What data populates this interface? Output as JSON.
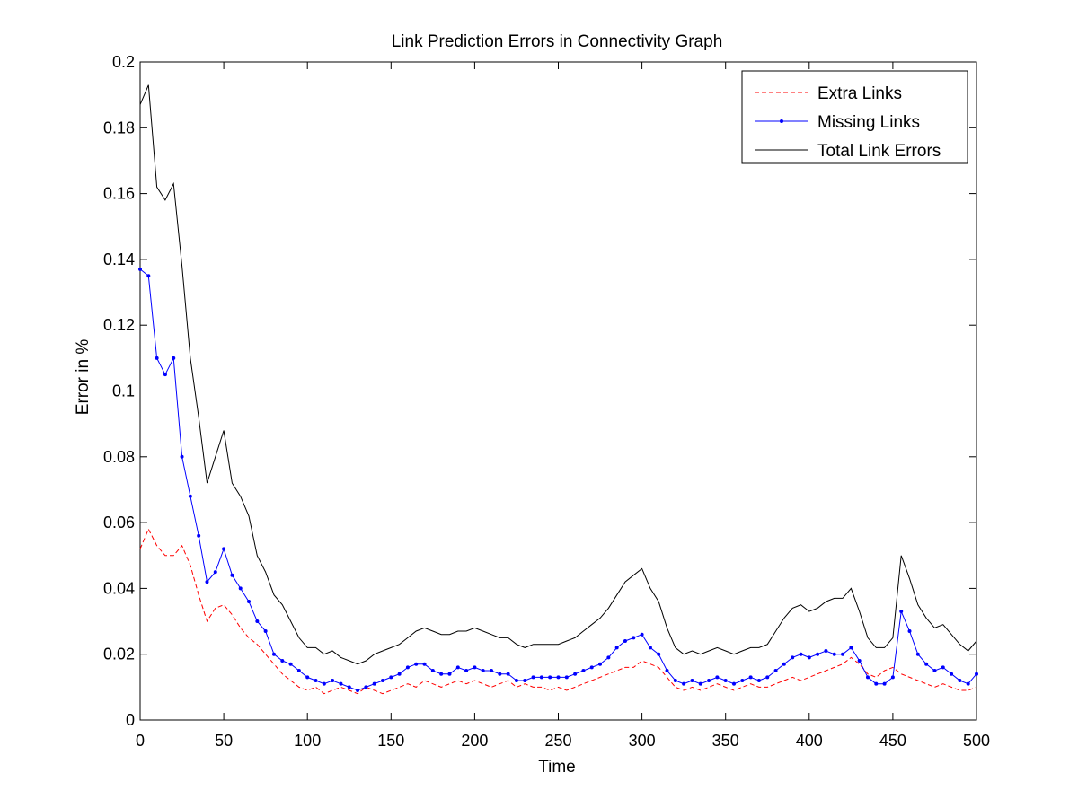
{
  "chart_data": {
    "type": "line",
    "title": "Link Prediction Errors in Connectivity Graph",
    "xlabel": "Time",
    "ylabel": "Error in %",
    "xlim": [
      0,
      500
    ],
    "ylim": [
      0,
      0.2
    ],
    "xticks": [
      0,
      50,
      100,
      150,
      200,
      250,
      300,
      350,
      400,
      450,
      500
    ],
    "yticks": [
      0,
      0.02,
      0.04,
      0.06,
      0.08,
      0.1,
      0.12,
      0.14,
      0.16,
      0.18,
      0.2
    ],
    "ytick_labels": [
      "0",
      "0.02",
      "0.04",
      "0.06",
      "0.08",
      "0.1",
      "0.12",
      "0.14",
      "0.16",
      "0.18",
      "0.2"
    ],
    "grid": false,
    "legend_position": "top-right",
    "series": [
      {
        "name": "Extra Links",
        "color": "#ff0000",
        "style": "dashed",
        "marker": "none",
        "x": [
          0,
          5,
          10,
          15,
          20,
          25,
          30,
          35,
          40,
          45,
          50,
          55,
          60,
          65,
          70,
          75,
          80,
          85,
          90,
          95,
          100,
          105,
          110,
          115,
          120,
          125,
          130,
          135,
          140,
          145,
          150,
          155,
          160,
          165,
          170,
          175,
          180,
          185,
          190,
          195,
          200,
          205,
          210,
          215,
          220,
          225,
          230,
          235,
          240,
          245,
          250,
          255,
          260,
          265,
          270,
          275,
          280,
          285,
          290,
          295,
          300,
          305,
          310,
          315,
          320,
          325,
          330,
          335,
          340,
          345,
          350,
          355,
          360,
          365,
          370,
          375,
          380,
          385,
          390,
          395,
          400,
          405,
          410,
          415,
          420,
          425,
          430,
          435,
          440,
          445,
          450,
          455,
          460,
          465,
          470,
          475,
          480,
          485,
          490,
          495,
          500
        ],
        "y": [
          0.052,
          0.058,
          0.053,
          0.05,
          0.05,
          0.053,
          0.047,
          0.038,
          0.03,
          0.034,
          0.035,
          0.032,
          0.028,
          0.025,
          0.023,
          0.02,
          0.017,
          0.014,
          0.012,
          0.01,
          0.009,
          0.01,
          0.008,
          0.009,
          0.01,
          0.009,
          0.008,
          0.01,
          0.009,
          0.008,
          0.009,
          0.01,
          0.011,
          0.01,
          0.012,
          0.011,
          0.01,
          0.011,
          0.012,
          0.011,
          0.012,
          0.011,
          0.01,
          0.011,
          0.012,
          0.01,
          0.011,
          0.01,
          0.01,
          0.009,
          0.01,
          0.009,
          0.01,
          0.011,
          0.012,
          0.013,
          0.014,
          0.015,
          0.016,
          0.016,
          0.018,
          0.017,
          0.016,
          0.013,
          0.01,
          0.009,
          0.01,
          0.009,
          0.01,
          0.011,
          0.01,
          0.009,
          0.01,
          0.011,
          0.01,
          0.01,
          0.011,
          0.012,
          0.013,
          0.012,
          0.013,
          0.014,
          0.015,
          0.016,
          0.017,
          0.019,
          0.017,
          0.014,
          0.013,
          0.015,
          0.016,
          0.014,
          0.013,
          0.012,
          0.011,
          0.01,
          0.011,
          0.01,
          0.009,
          0.009,
          0.01
        ]
      },
      {
        "name": "Missing Links",
        "color": "#0000ff",
        "style": "solid",
        "marker": "point",
        "x": [
          0,
          5,
          10,
          15,
          20,
          25,
          30,
          35,
          40,
          45,
          50,
          55,
          60,
          65,
          70,
          75,
          80,
          85,
          90,
          95,
          100,
          105,
          110,
          115,
          120,
          125,
          130,
          135,
          140,
          145,
          150,
          155,
          160,
          165,
          170,
          175,
          180,
          185,
          190,
          195,
          200,
          205,
          210,
          215,
          220,
          225,
          230,
          235,
          240,
          245,
          250,
          255,
          260,
          265,
          270,
          275,
          280,
          285,
          290,
          295,
          300,
          305,
          310,
          315,
          320,
          325,
          330,
          335,
          340,
          345,
          350,
          355,
          360,
          365,
          370,
          375,
          380,
          385,
          390,
          395,
          400,
          405,
          410,
          415,
          420,
          425,
          430,
          435,
          440,
          445,
          450,
          455,
          460,
          465,
          470,
          475,
          480,
          485,
          490,
          495,
          500
        ],
        "y": [
          0.137,
          0.135,
          0.11,
          0.105,
          0.11,
          0.08,
          0.068,
          0.056,
          0.042,
          0.045,
          0.052,
          0.044,
          0.04,
          0.036,
          0.03,
          0.027,
          0.02,
          0.018,
          0.017,
          0.015,
          0.013,
          0.012,
          0.011,
          0.012,
          0.011,
          0.01,
          0.009,
          0.01,
          0.011,
          0.012,
          0.013,
          0.014,
          0.016,
          0.017,
          0.017,
          0.015,
          0.014,
          0.014,
          0.016,
          0.015,
          0.016,
          0.015,
          0.015,
          0.014,
          0.014,
          0.012,
          0.012,
          0.013,
          0.013,
          0.013,
          0.013,
          0.013,
          0.014,
          0.015,
          0.016,
          0.017,
          0.019,
          0.022,
          0.024,
          0.025,
          0.026,
          0.022,
          0.02,
          0.015,
          0.012,
          0.011,
          0.012,
          0.011,
          0.012,
          0.013,
          0.012,
          0.011,
          0.012,
          0.013,
          0.012,
          0.013,
          0.015,
          0.017,
          0.019,
          0.02,
          0.019,
          0.02,
          0.021,
          0.02,
          0.02,
          0.022,
          0.018,
          0.013,
          0.011,
          0.011,
          0.013,
          0.033,
          0.027,
          0.02,
          0.017,
          0.015,
          0.016,
          0.014,
          0.012,
          0.011,
          0.014
        ]
      },
      {
        "name": "Total Link Errors",
        "color": "#000000",
        "style": "solid",
        "marker": "none",
        "x": [
          0,
          5,
          10,
          15,
          20,
          25,
          30,
          35,
          40,
          45,
          50,
          55,
          60,
          65,
          70,
          75,
          80,
          85,
          90,
          95,
          100,
          105,
          110,
          115,
          120,
          125,
          130,
          135,
          140,
          145,
          150,
          155,
          160,
          165,
          170,
          175,
          180,
          185,
          190,
          195,
          200,
          205,
          210,
          215,
          220,
          225,
          230,
          235,
          240,
          245,
          250,
          255,
          260,
          265,
          270,
          275,
          280,
          285,
          290,
          295,
          300,
          305,
          310,
          315,
          320,
          325,
          330,
          335,
          340,
          345,
          350,
          355,
          360,
          365,
          370,
          375,
          380,
          385,
          390,
          395,
          400,
          405,
          410,
          415,
          420,
          425,
          430,
          435,
          440,
          445,
          450,
          455,
          460,
          465,
          470,
          475,
          480,
          485,
          490,
          495,
          500
        ],
        "y": [
          0.187,
          0.193,
          0.162,
          0.158,
          0.163,
          0.138,
          0.11,
          0.092,
          0.072,
          0.08,
          0.088,
          0.072,
          0.068,
          0.062,
          0.05,
          0.045,
          0.038,
          0.035,
          0.03,
          0.025,
          0.022,
          0.022,
          0.02,
          0.021,
          0.019,
          0.018,
          0.017,
          0.018,
          0.02,
          0.021,
          0.022,
          0.023,
          0.025,
          0.027,
          0.028,
          0.027,
          0.026,
          0.026,
          0.027,
          0.027,
          0.028,
          0.027,
          0.026,
          0.025,
          0.025,
          0.023,
          0.022,
          0.023,
          0.023,
          0.023,
          0.023,
          0.024,
          0.025,
          0.027,
          0.029,
          0.031,
          0.034,
          0.038,
          0.042,
          0.044,
          0.046,
          0.04,
          0.036,
          0.028,
          0.022,
          0.02,
          0.021,
          0.02,
          0.021,
          0.022,
          0.021,
          0.02,
          0.021,
          0.022,
          0.022,
          0.023,
          0.027,
          0.031,
          0.034,
          0.035,
          0.033,
          0.034,
          0.036,
          0.037,
          0.037,
          0.04,
          0.033,
          0.025,
          0.022,
          0.022,
          0.025,
          0.05,
          0.043,
          0.035,
          0.031,
          0.028,
          0.029,
          0.026,
          0.023,
          0.021,
          0.024
        ]
      }
    ]
  }
}
